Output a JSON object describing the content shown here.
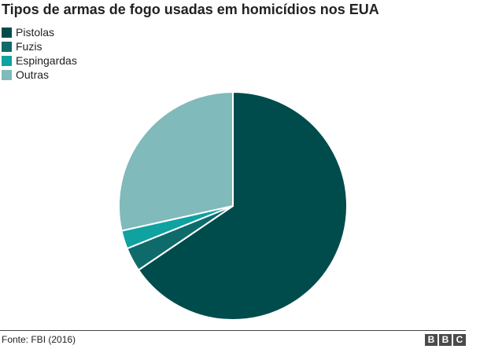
{
  "chart_data": {
    "type": "pie",
    "title": "Tipos de armas de fogo usadas em homicídios nos EUA",
    "legend_position": "top-left",
    "series": [
      {
        "name": "Pistolas",
        "value": 65.5,
        "color": "#004C4C"
      },
      {
        "name": "Fuzis",
        "value": 3.4,
        "color": "#0F6B6B"
      },
      {
        "name": "Espingardas",
        "value": 2.6,
        "color": "#10A1A1"
      },
      {
        "name": "Outras",
        "value": 28.5,
        "color": "#80BABA"
      }
    ]
  },
  "footer": {
    "source": "Fonte: FBI (2016)",
    "logo": [
      "B",
      "B",
      "C"
    ]
  }
}
